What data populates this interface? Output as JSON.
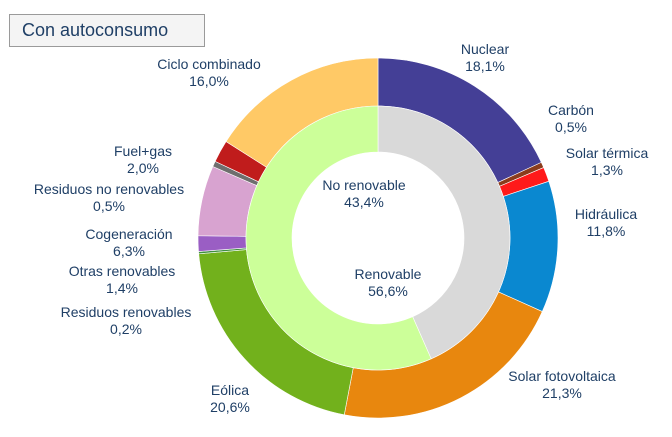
{
  "title": "Con autoconsumo",
  "chart_data": {
    "type": "pie",
    "title": "Con autoconsumo",
    "variant": "nested-donut",
    "outer": [
      {
        "name": "Nuclear",
        "label": "18,1%",
        "value": 18.1,
        "color": "#443f96"
      },
      {
        "name": "Carbón",
        "label": "0,5%",
        "value": 0.5,
        "color": "#8a3c1c"
      },
      {
        "name": "Solar térmica",
        "label": "1,3%",
        "value": 1.3,
        "color": "#ff1a1a"
      },
      {
        "name": "Hidráulica",
        "label": "11,8%",
        "value": 11.8,
        "color": "#0a88d0"
      },
      {
        "name": "Solar fotovoltaica",
        "label": "21,3%",
        "value": 21.3,
        "color": "#e8870e"
      },
      {
        "name": "Eólica",
        "label": "20,6%",
        "value": 20.6,
        "color": "#72b11c"
      },
      {
        "name": "Residuos renovables",
        "label": "0,2%",
        "value": 0.2,
        "color": "#3f8f3f"
      },
      {
        "name": "Otras renovables",
        "label": "1,4%",
        "value": 1.4,
        "color": "#9a5ec4"
      },
      {
        "name": "Cogeneración",
        "label": "6,3%",
        "value": 6.3,
        "color": "#d8a3d0"
      },
      {
        "name": "Residuos no renovables",
        "label": "0,5%",
        "value": 0.5,
        "color": "#6e6e6e"
      },
      {
        "name": "Fuel+gas",
        "label": "2,0%",
        "value": 2.0,
        "color": "#c01c1c"
      },
      {
        "name": "Ciclo combinado",
        "label": "16,0%",
        "value": 16.0,
        "color": "#ffc966"
      }
    ],
    "inner": [
      {
        "name": "No renovable",
        "label": "43,4%",
        "value": 43.4,
        "color": "#d9d9d9"
      },
      {
        "name": "Renovable",
        "label": "56,6%",
        "value": 56.6,
        "color": "#ccff99"
      }
    ]
  }
}
